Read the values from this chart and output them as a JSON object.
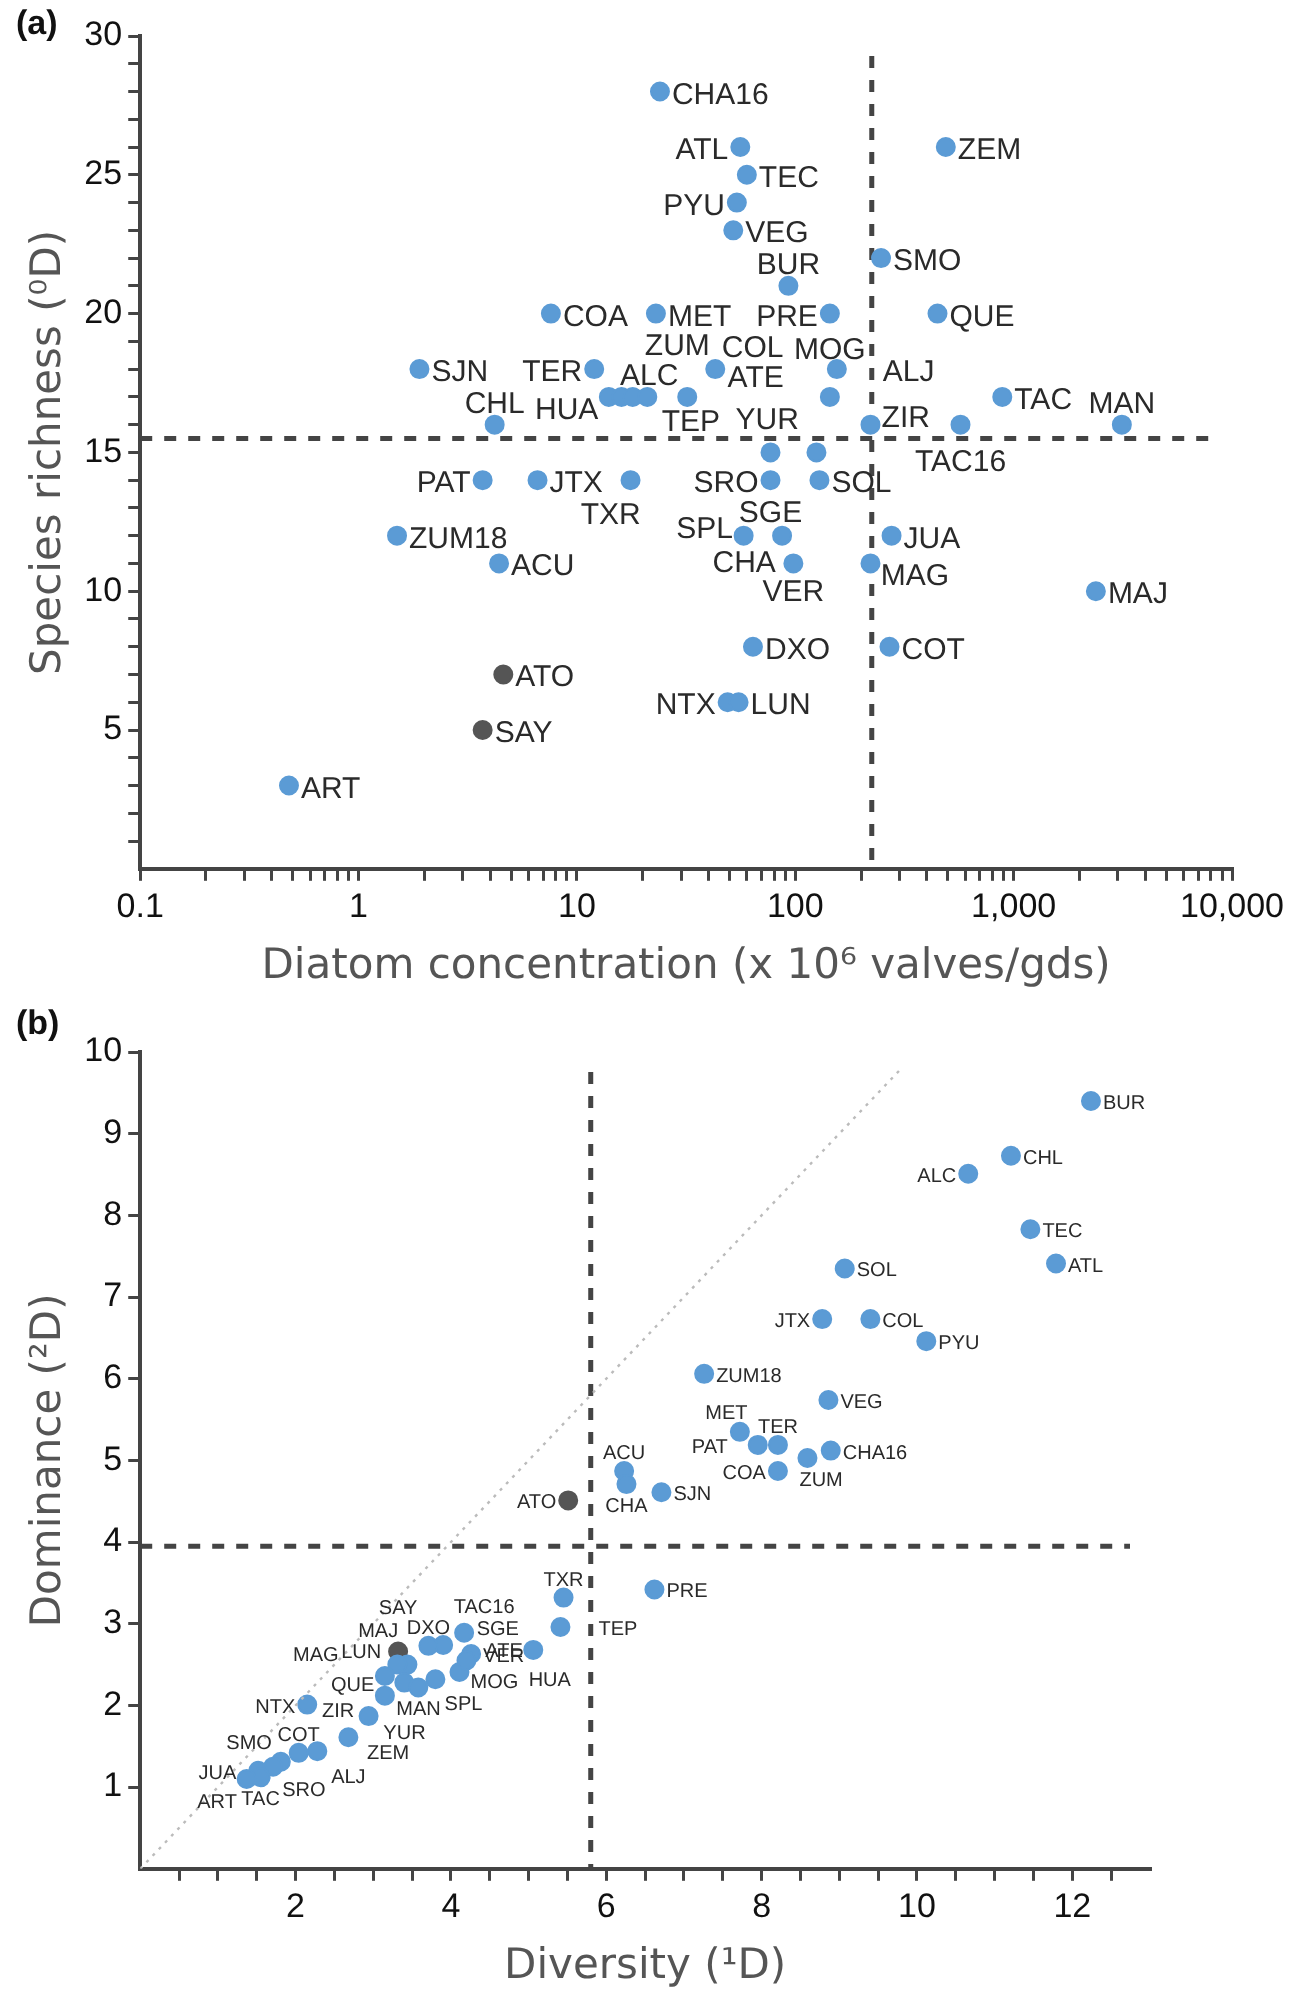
{
  "chart_data": [
    {
      "type": "scatter",
      "title": "(a)",
      "xlabel": "Diatom concentration (x 10⁶ valves/gds)",
      "ylabel": "Species richness (⁰D)",
      "log": "x",
      "grid": false,
      "legend": false,
      "marker": "circle",
      "xlim": [
        0.1,
        10000
      ],
      "xticks": [
        {
          "value": 0.1,
          "label": "0.1"
        },
        {
          "value": 0.2,
          "label": null
        },
        {
          "value": 0.3,
          "label": null
        },
        {
          "value": 0.4,
          "label": null
        },
        {
          "value": 0.5,
          "label": null
        },
        {
          "value": 0.6,
          "label": null
        },
        {
          "value": 0.7,
          "label": null
        },
        {
          "value": 0.8,
          "label": null
        },
        {
          "value": 0.9,
          "label": null
        },
        {
          "value": 1,
          "label": "1"
        },
        {
          "value": 2,
          "label": null
        },
        {
          "value": 3,
          "label": null
        },
        {
          "value": 4,
          "label": null
        },
        {
          "value": 5,
          "label": null
        },
        {
          "value": 6,
          "label": null
        },
        {
          "value": 7,
          "label": null
        },
        {
          "value": 8,
          "label": null
        },
        {
          "value": 9,
          "label": null
        },
        {
          "value": 10,
          "label": "10"
        },
        {
          "value": 20,
          "label": null
        },
        {
          "value": 30,
          "label": null
        },
        {
          "value": 40,
          "label": null
        },
        {
          "value": 50,
          "label": null
        },
        {
          "value": 60,
          "label": null
        },
        {
          "value": 70,
          "label": null
        },
        {
          "value": 80,
          "label": null
        },
        {
          "value": 90,
          "label": null
        },
        {
          "value": 100,
          "label": "100"
        },
        {
          "value": 200,
          "label": null
        },
        {
          "value": 300,
          "label": null
        },
        {
          "value": 400,
          "label": null
        },
        {
          "value": 500,
          "label": null
        },
        {
          "value": 600,
          "label": null
        },
        {
          "value": 700,
          "label": null
        },
        {
          "value": 800,
          "label": null
        },
        {
          "value": 900,
          "label": null
        },
        {
          "value": 1000,
          "label": "1,000"
        },
        {
          "value": 2000,
          "label": null
        },
        {
          "value": 3000,
          "label": null
        },
        {
          "value": 4000,
          "label": null
        },
        {
          "value": 5000,
          "label": null
        },
        {
          "value": 6000,
          "label": null
        },
        {
          "value": 7000,
          "label": null
        },
        {
          "value": 8000,
          "label": null
        },
        {
          "value": 9000,
          "label": null
        },
        {
          "value": 10000,
          "label": "10,000"
        }
      ],
      "ylim": [
        0,
        30
      ],
      "yticks": [
        {
          "value": 1,
          "label": null
        },
        {
          "value": 2,
          "label": null
        },
        {
          "value": 3,
          "label": null
        },
        {
          "value": 4,
          "label": null
        },
        5,
        {
          "value": 6,
          "label": null
        },
        {
          "value": 7,
          "label": null
        },
        {
          "value": 8,
          "label": null
        },
        {
          "value": 9,
          "label": null
        },
        10,
        {
          "value": 11,
          "label": null
        },
        {
          "value": 12,
          "label": null
        },
        {
          "value": 13,
          "label": null
        },
        {
          "value": 14,
          "label": null
        },
        15,
        {
          "value": 16,
          "label": null
        },
        {
          "value": 17,
          "label": null
        },
        {
          "value": 18,
          "label": null
        },
        {
          "value": 19,
          "label": null
        },
        20,
        {
          "value": 21,
          "label": null
        },
        {
          "value": 22,
          "label": null
        },
        {
          "value": 23,
          "label": null
        },
        {
          "value": 24,
          "label": null
        },
        25,
        {
          "value": 26,
          "label": null
        },
        {
          "value": 27,
          "label": null
        },
        {
          "value": 28,
          "label": null
        },
        {
          "value": 29,
          "label": null
        },
        30
      ],
      "ref_lines": [
        {
          "axis": "x",
          "value": 224,
          "color": "#444444",
          "line_style": "dashed"
        },
        {
          "axis": "y",
          "value": 15.5,
          "color": "#444444",
          "line_style": "dashed"
        }
      ],
      "series": [
        {
          "color": "#5b9bd5",
          "x": [
            24,
            56,
            60,
            54,
            52,
            489,
            247,
            93,
            144,
            448,
            7.6,
            23,
            1.9,
            12,
            43,
            155,
            14,
            16,
            18,
            21,
            32,
            144,
            887,
            4.2,
            221,
            571,
            3130,
            3.7,
            6.6,
            17.6,
            77,
            125,
            77,
            129,
            58,
            87,
            276,
            1.5,
            221,
            4.4,
            98,
            2380,
            64,
            270,
            49,
            55,
            0.48
          ],
          "values": [
            28,
            26,
            25,
            24,
            23,
            26,
            22,
            21,
            20,
            20,
            20,
            20,
            18,
            18,
            18,
            18,
            17,
            17,
            17,
            17,
            17,
            17,
            17,
            16,
            16,
            16,
            16,
            14,
            14,
            14,
            15,
            15,
            14,
            14,
            12,
            12,
            12,
            12,
            11,
            11,
            11,
            10,
            8,
            8,
            6,
            6,
            3
          ],
          "value_labels": [
            "CHA16",
            "ATL",
            "TEC",
            "PYU",
            "VEG",
            "ZEM",
            "SMO",
            "BUR",
            "PRE",
            "QUE",
            "COA",
            "MET",
            "SJN",
            "TER",
            "COL",
            "ALJ",
            "HUA",
            "TEP",
            "ALC",
            "ZUM",
            "ATE",
            "MOG",
            "TAC",
            "CHL",
            "ZIR",
            "TAC16",
            "MAN",
            "PAT",
            "JTX",
            "TXR",
            "SGE",
            "YUR",
            "SRO",
            "SOL",
            "SPL",
            "CHA",
            "JUA",
            "ZUM18",
            "MAG",
            "ACU",
            "VER",
            "MAJ",
            "DXO",
            "COT",
            "NTX",
            "LUN",
            "ART"
          ]
        },
        {
          "color": "#555555",
          "x": [
            4.6,
            3.7
          ],
          "values": [
            7,
            5
          ],
          "value_labels": [
            "ATO",
            "SAY"
          ]
        }
      ]
    },
    {
      "type": "scatter",
      "title": "(b)",
      "xlabel": "Diversity (¹D)",
      "ylabel": "Dominance (²D)",
      "grid": false,
      "legend": false,
      "marker": "circle",
      "xlim": [
        0,
        13
      ],
      "xticks": [
        {
          "value": 0.5,
          "label": null
        },
        {
          "value": 1,
          "label": null
        },
        {
          "value": 1.5,
          "label": null
        },
        2,
        {
          "value": 2.5,
          "label": null
        },
        {
          "value": 3,
          "label": null
        },
        {
          "value": 3.5,
          "label": null
        },
        4,
        {
          "value": 4.5,
          "label": null
        },
        {
          "value": 5,
          "label": null
        },
        {
          "value": 5.5,
          "label": null
        },
        6,
        {
          "value": 6.5,
          "label": null
        },
        {
          "value": 7,
          "label": null
        },
        {
          "value": 7.5,
          "label": null
        },
        8,
        {
          "value": 8.5,
          "label": null
        },
        {
          "value": 9,
          "label": null
        },
        {
          "value": 9.5,
          "label": null
        },
        10,
        {
          "value": 10.5,
          "label": null
        },
        {
          "value": 11,
          "label": null
        },
        {
          "value": 11.5,
          "label": null
        },
        12,
        {
          "value": 12.5,
          "label": null
        }
      ],
      "ylim": [
        0,
        10
      ],
      "yticks": [
        1,
        2,
        3,
        4,
        5,
        6,
        7,
        8,
        9,
        10
      ],
      "ref_lines": [
        {
          "axis": "x",
          "value": 5.8,
          "color": "#444444",
          "line_style": "dashed"
        },
        {
          "axis": "y",
          "value": 3.95,
          "color": "#444444",
          "line_style": "dashed"
        }
      ],
      "series": [
        {
          "type": "line",
          "color": "#bbbbbb",
          "line_style": "dotted",
          "marker": "none",
          "x": [
            0,
            9.8
          ],
          "values": [
            0,
            9.8
          ]
        },
        {
          "color": "#5b9bd5",
          "x": [
            12.24,
            11.21,
            10.66,
            11.46,
            11.79,
            9.07,
            8.78,
            9.4,
            10.12,
            7.26,
            8.86,
            7.72,
            7.95,
            8.21,
            8.21,
            8.59,
            8.89,
            6.23,
            6.26,
            6.71,
            5.45,
            6.62,
            5.41,
            4.17,
            3.9,
            3.71,
            4.26,
            5.06,
            4.11,
            3.8,
            4.2,
            3.44,
            3.31,
            3.4,
            3.15,
            3.58,
            3.15,
            2.94,
            2.68,
            2.15,
            2.28,
            2.04,
            1.81,
            1.71,
            1.52,
            1.55,
            1.37
          ],
          "values": [
            9.4,
            8.73,
            8.51,
            7.83,
            7.41,
            7.35,
            6.73,
            6.73,
            6.46,
            6.06,
            5.74,
            5.35,
            5.19,
            5.19,
            4.87,
            5.03,
            5.12,
            4.87,
            4.71,
            4.61,
            3.32,
            3.42,
            2.96,
            2.89,
            2.74,
            2.73,
            2.63,
            2.68,
            2.41,
            2.32,
            2.55,
            2.5,
            2.5,
            2.28,
            2.36,
            2.22,
            2.12,
            1.87,
            1.61,
            2.01,
            1.44,
            1.42,
            1.31,
            1.25,
            1.2,
            1.12,
            1.1
          ],
          "value_labels": [
            "BUR",
            "CHL",
            "ALC",
            "TEC",
            "ATL",
            "SOL",
            "JTX",
            "COL",
            "PYU",
            "ZUM18",
            "VEG",
            "MET",
            "PAT",
            "TER",
            "COA",
            "ZUM",
            "CHA16",
            "ACU",
            "CHA",
            "SJN",
            "TXR",
            "PRE",
            "TEP",
            "TAC16",
            "SGE",
            "DXO",
            "VER",
            "HUA",
            "MOG",
            "MAN",
            "ATE",
            "LUN",
            "MAJ",
            "QUE",
            "MAG",
            "SPL",
            "YUR",
            "ZEM",
            "ALJ",
            "NTX",
            "ZIR",
            "COT",
            "SMO",
            "SRO",
            "JUA",
            "TAC",
            "ART"
          ]
        },
        {
          "color": "#555555",
          "x": [
            5.51,
            3.32
          ],
          "values": [
            4.51,
            2.66
          ],
          "value_labels": [
            "ATO",
            "SAY"
          ]
        }
      ]
    }
  ]
}
